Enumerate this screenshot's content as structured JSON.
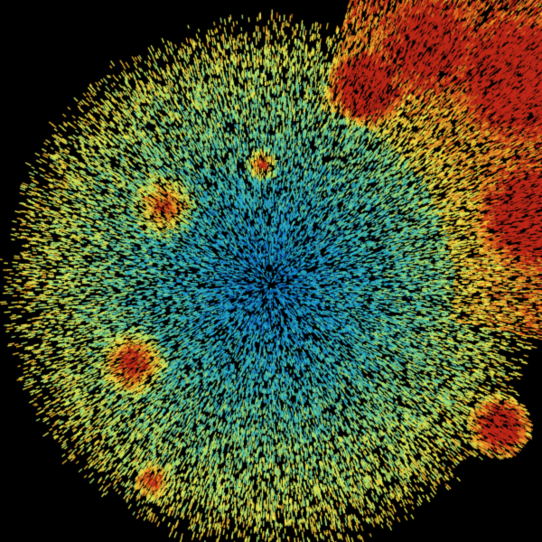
{
  "background": "#000000",
  "palette": [
    "#0a5fb4",
    "#1a8fd0",
    "#2ab0c8",
    "#5cc8a0",
    "#a8e070",
    "#e8e850",
    "#f0b830",
    "#e07020",
    "#c02818"
  ]
}
